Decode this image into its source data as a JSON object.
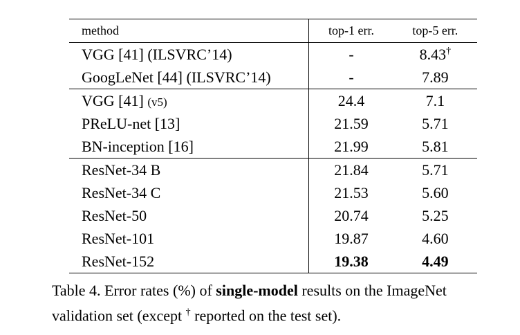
{
  "table": {
    "header": [
      "method",
      "top-1 err.",
      "top-5 err."
    ],
    "groups": [
      [
        {
          "method": "VGG [41] (ILSVRC’14)",
          "top1": "-",
          "top5": "8.43",
          "top5_mark": "†"
        },
        {
          "method": "GoogLeNet [44] (ILSVRC’14)",
          "top1": "-",
          "top5": "7.89"
        }
      ],
      [
        {
          "method": "VGG [41]",
          "method_note": "(v5)",
          "top1": "24.4",
          "top5": "7.1"
        },
        {
          "method": "PReLU-net [13]",
          "top1": "21.59",
          "top5": "5.71"
        },
        {
          "method": "BN-inception [16]",
          "top1": "21.99",
          "top5": "5.81"
        }
      ],
      [
        {
          "method": "ResNet-34 B",
          "top1": "21.84",
          "top5": "5.71"
        },
        {
          "method": "ResNet-34 C",
          "top1": "21.53",
          "top5": "5.60"
        },
        {
          "method": "ResNet-50",
          "top1": "20.74",
          "top5": "5.25"
        },
        {
          "method": "ResNet-101",
          "top1": "19.87",
          "top5": "4.60"
        },
        {
          "method": "ResNet-152",
          "top1": "19.38",
          "top5": "4.49",
          "bold": true
        }
      ]
    ]
  },
  "caption": {
    "parts": [
      "Table 4. Error rates (%) of ",
      "single-model",
      " results on the ImageNet validation set (except ",
      "†",
      " reported on the test set)."
    ]
  }
}
